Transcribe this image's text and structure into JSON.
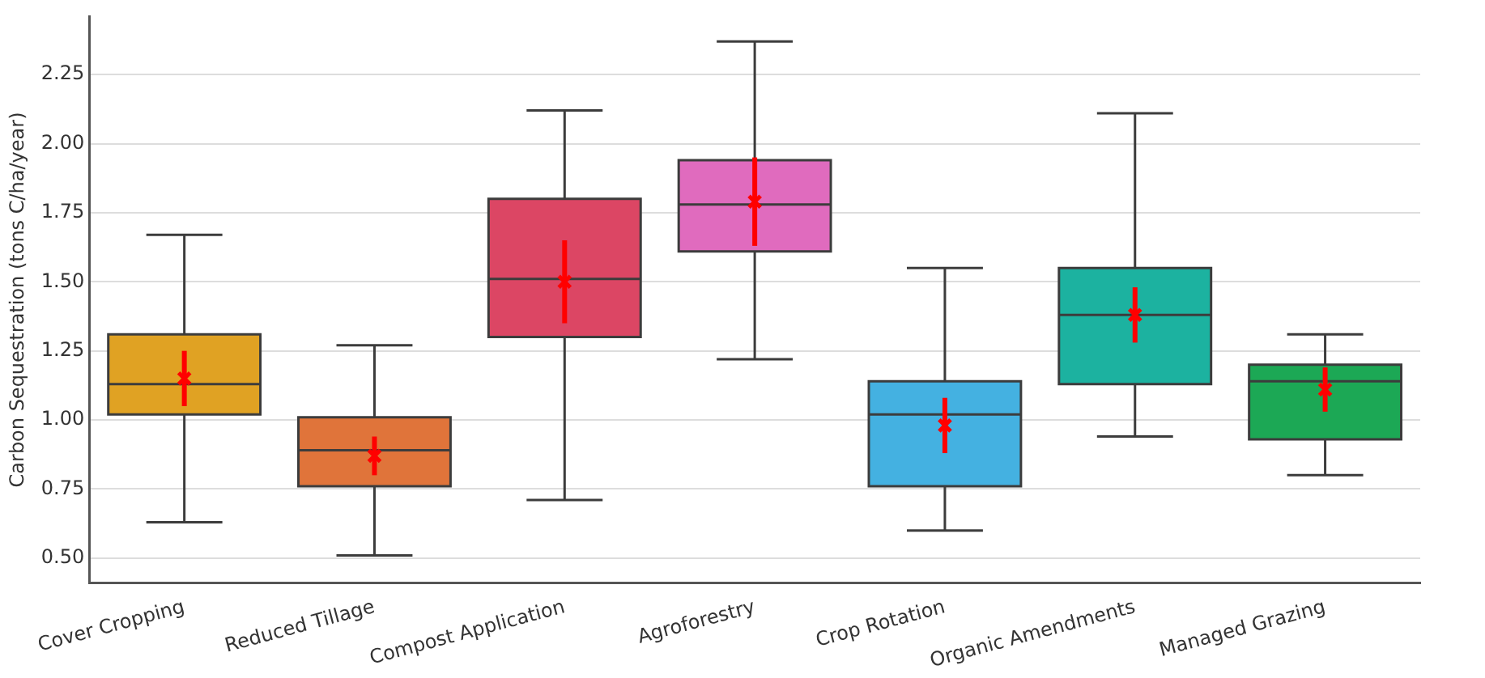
{
  "chart_data": {
    "type": "box",
    "ylabel": "Carbon Sequestration (tons C/ha/year)",
    "categories": [
      "Cover Cropping",
      "Reduced Tillage",
      "Compost Application",
      "Agroforestry",
      "Crop Rotation",
      "Organic Amendments",
      "Managed Grazing"
    ],
    "colors": [
      "#e0a223",
      "#e0743a",
      "#dc4664",
      "#e06bbe",
      "#44b1e1",
      "#1cb2a0",
      "#1ca855"
    ],
    "boxes": [
      {
        "low": 0.63,
        "q1": 1.02,
        "median": 1.13,
        "q3": 1.31,
        "high": 1.67
      },
      {
        "low": 0.51,
        "q1": 0.76,
        "median": 0.89,
        "q3": 1.01,
        "high": 1.27
      },
      {
        "low": 0.71,
        "q1": 1.3,
        "median": 1.51,
        "q3": 1.8,
        "high": 2.12
      },
      {
        "low": 1.22,
        "q1": 1.61,
        "median": 1.78,
        "q3": 1.94,
        "high": 2.37
      },
      {
        "low": 0.6,
        "q1": 0.76,
        "median": 1.02,
        "q3": 1.14,
        "high": 1.55
      },
      {
        "low": 0.94,
        "q1": 1.13,
        "median": 1.38,
        "q3": 1.55,
        "high": 2.11
      },
      {
        "low": 0.8,
        "q1": 0.93,
        "median": 1.14,
        "q3": 1.2,
        "high": 1.31
      }
    ],
    "series": [
      {
        "type": "scatter",
        "color": "#ff0000",
        "x": [
          "Cover Cropping",
          "Reduced Tillage",
          "Compost Application",
          "Agroforestry",
          "Crop Rotation",
          "Organic Amendments",
          "Managed Grazing"
        ],
        "values": [
          1.15,
          0.87,
          1.5,
          1.79,
          0.98,
          1.38,
          1.11
        ],
        "errors": [
          0.1,
          0.07,
          0.15,
          0.16,
          0.1,
          0.1,
          0.08
        ]
      }
    ],
    "marker": "cross",
    "ylim": [
      0.41,
      2.46
    ],
    "yticks": [
      {
        "value": 0.5,
        "label": "0.50"
      },
      0.75,
      {
        "value": 1,
        "label": "1.00"
      },
      1.25,
      {
        "value": 1.5,
        "label": "1.50"
      },
      1.75,
      {
        "value": 2,
        "label": "2.00"
      },
      2.25
    ],
    "grid": "y"
  }
}
